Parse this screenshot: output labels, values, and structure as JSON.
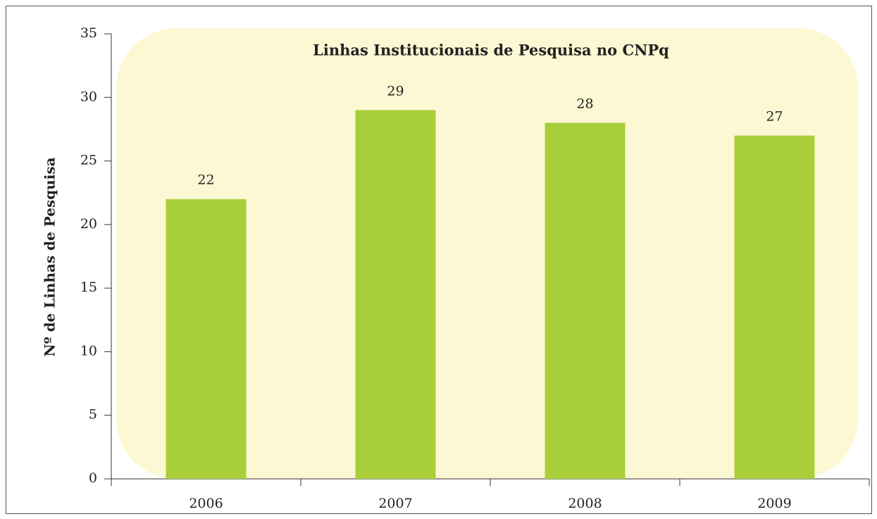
{
  "chart_data": {
    "type": "bar",
    "title": "Linhas Institucionais de Pesquisa no CNPq",
    "y_label": "Nº de Linhas de Pesquisa",
    "categories": [
      "2006",
      "2007",
      "2008",
      "2009"
    ],
    "values": [
      22,
      29,
      28,
      27
    ],
    "color": "#a8cf3a",
    "background": "#fdf8d4",
    "ylim": [
      0,
      35
    ],
    "yticks": [
      0,
      5,
      10,
      15,
      20,
      25,
      30,
      35
    ],
    "grid": false
  }
}
